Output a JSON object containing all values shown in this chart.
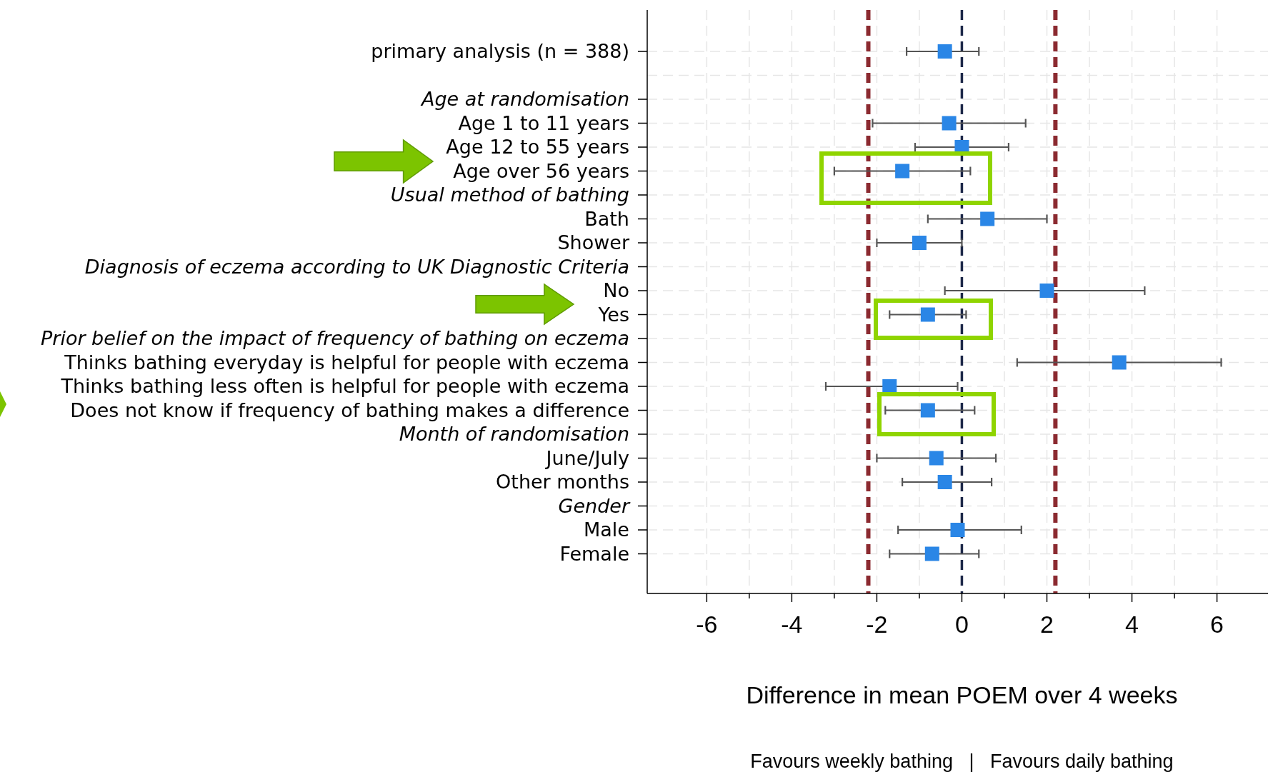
{
  "chart_data": {
    "type": "scatter",
    "orientation": "horizontal",
    "marker": "square",
    "grid": true,
    "xlabel": "Difference in mean POEM over 4 weeks",
    "categories": [
      "primary analysis (n = 388)",
      null,
      "Age at randomisation",
      "Age 1 to 11 years",
      "Age 12 to 55 years",
      "Age over 56 years",
      "Usual method of bathing",
      "Bath",
      "Shower",
      "Diagnosis of eczema according to UK Diagnostic Criteria",
      "No",
      "Yes",
      "Prior belief on the impact of frequency of bathing on eczema",
      "Thinks bathing everyday is helpful for people with eczema",
      "Thinks bathing less often is helpful for people with eczema",
      "Does not know if frequency of bathing makes a difference",
      "Month of randomisation",
      "June/July",
      "Other months",
      "Gender",
      "Male",
      "Female"
    ],
    "series": [
      {
        "color": "#2a86e6",
        "values": [
          -0.4,
          null,
          null,
          -0.3,
          0,
          -1.4,
          null,
          0.6,
          -1.0,
          null,
          2.0,
          -0.8,
          null,
          3.7,
          -1.7,
          -0.8,
          null,
          -0.6,
          -0.4,
          null,
          -0.1,
          -0.7
        ],
        "errors": [
          [
            -1.3,
            0.4
          ],
          null,
          null,
          [
            -2.1,
            1.5
          ],
          [
            -1.1,
            1.1
          ],
          [
            -3.0,
            0.2
          ],
          null,
          [
            -0.8,
            2.0
          ],
          [
            -2.0,
            0
          ],
          null,
          [
            -0.4,
            4.3
          ],
          [
            -1.7,
            0.1
          ],
          null,
          [
            1.3,
            6.1
          ],
          [
            -3.2,
            -0.1
          ],
          [
            -1.8,
            0.3
          ],
          null,
          [
            -2.0,
            0.8
          ],
          [
            -1.4,
            0.7
          ],
          null,
          [
            -1.5,
            1.4
          ],
          [
            -1.7,
            0.4
          ]
        ]
      }
    ],
    "xlim": [
      -7.4,
      7.2
    ],
    "xticks": [
      -6,
      {
        "value": -5,
        "label": null
      },
      -4,
      {
        "value": -3,
        "label": null
      },
      -2,
      {
        "value": -1,
        "label": null
      },
      0,
      {
        "value": 1,
        "label": null
      },
      2,
      {
        "value": 3,
        "label": null
      },
      4,
      {
        "value": 5,
        "label": null
      },
      6
    ],
    "ref_lines": [
      {
        "axis": "x",
        "value": -2.2,
        "color": "#8b2a30",
        "line_style": "dashed"
      },
      {
        "axis": "x",
        "value": 2.2,
        "color": "#8b2a30",
        "line_style": "dashed"
      },
      {
        "axis": "x",
        "value": 0,
        "color": "#1c2748",
        "line_style": "dashed"
      }
    ],
    "annotations": [
      "Favours weekly bathing   |   Favours daily bathing"
    ]
  }
}
